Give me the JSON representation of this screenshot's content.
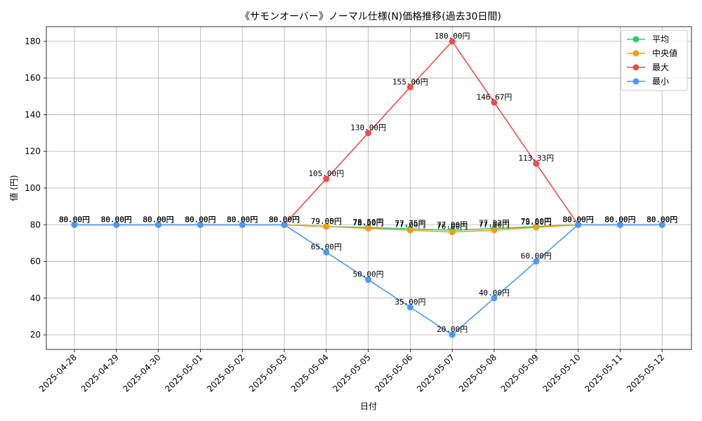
{
  "chart_data": {
    "type": "line",
    "title": "《サモンオーバー》ノーマル仕様(N)価格推移(過去30日間)",
    "xlabel": "日付",
    "ylabel": "値 (円)",
    "categories": [
      "2025-04-28",
      "2025-04-29",
      "2025-04-30",
      "2025-05-01",
      "2025-05-02",
      "2025-05-03",
      "2025-05-04",
      "2025-05-05",
      "2025-05-06",
      "2025-05-07",
      "2025-05-08",
      "2025-05-09",
      "2025-05-10",
      "2025-05-11",
      "2025-05-12"
    ],
    "ylim": [
      12,
      188
    ],
    "yticks": [
      20,
      40,
      60,
      80,
      100,
      120,
      140,
      160,
      180
    ],
    "grid": true,
    "legend_position": "top-right",
    "value_suffix": "円",
    "series": [
      {
        "name": "平均",
        "color": "#2ecc71",
        "values": [
          80.0,
          80.0,
          80.0,
          80.0,
          80.0,
          80.0,
          79.0,
          78.5,
          77.75,
          77.0,
          77.92,
          79.0,
          80.0,
          80.0,
          80.0
        ]
      },
      {
        "name": "中央値",
        "color": "#f39c12",
        "values": [
          80.0,
          80.0,
          80.0,
          80.0,
          80.0,
          80.0,
          79.05,
          78.0,
          77.0,
          76.0,
          77.0,
          78.6,
          80.0,
          80.0,
          80.0
        ]
      },
      {
        "name": "最大",
        "color": "#ef4b4b",
        "values": [
          80.0,
          80.0,
          80.0,
          80.0,
          80.0,
          80.0,
          105.0,
          130.0,
          155.0,
          180.0,
          146.67,
          113.33,
          80.0,
          80.0,
          80.0
        ]
      },
      {
        "name": "最小",
        "color": "#4a9af5",
        "values": [
          80.0,
          80.0,
          80.0,
          80.0,
          80.0,
          80.0,
          65.0,
          50.0,
          35.0,
          20.0,
          40.0,
          60.0,
          80.0,
          80.0,
          80.0
        ]
      }
    ]
  }
}
